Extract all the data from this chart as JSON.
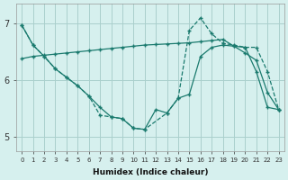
{
  "xlabel": "Humidex (Indice chaleur)",
  "bg_color": "#d6f0ee",
  "grid_color": "#aacfcc",
  "line_color": "#1a7a6e",
  "xlim": [
    -0.5,
    23.5
  ],
  "ylim": [
    4.75,
    7.35
  ],
  "xticks": [
    0,
    1,
    2,
    3,
    4,
    5,
    6,
    7,
    8,
    9,
    10,
    11,
    12,
    13,
    14,
    15,
    16,
    17,
    18,
    19,
    20,
    21,
    22,
    23
  ],
  "yticks": [
    5,
    6,
    7
  ],
  "line1_x": [
    0,
    1,
    2,
    3,
    4,
    5,
    6,
    7,
    8,
    9,
    10,
    11,
    12,
    13,
    14,
    15,
    16,
    17,
    18,
    19,
    20,
    21,
    22,
    23
  ],
  "line1_y": [
    6.97,
    6.62,
    6.42,
    6.2,
    6.05,
    5.9,
    5.72,
    5.52,
    5.35,
    5.32,
    5.15,
    5.13,
    5.48,
    5.42,
    5.68,
    5.75,
    6.42,
    6.58,
    6.62,
    6.6,
    6.58,
    6.15,
    5.52,
    5.48
  ],
  "line2_x": [
    0,
    1,
    2,
    3,
    4,
    5,
    6,
    7,
    8,
    9,
    10,
    11,
    12,
    13,
    14,
    15,
    16,
    17,
    18,
    19,
    20,
    21,
    22,
    23
  ],
  "line2_y": [
    6.38,
    6.42,
    6.44,
    6.46,
    6.48,
    6.5,
    6.52,
    6.54,
    6.56,
    6.58,
    6.6,
    6.62,
    6.63,
    6.64,
    6.65,
    6.66,
    6.68,
    6.7,
    6.72,
    6.6,
    6.48,
    6.35,
    5.78,
    5.48
  ],
  "line3_x": [
    0,
    1,
    2,
    3,
    4,
    5,
    6,
    7,
    8,
    9,
    10,
    11,
    13,
    14,
    15,
    16,
    17,
    18,
    19,
    20,
    21,
    22,
    23
  ],
  "line3_y": [
    6.97,
    6.62,
    6.42,
    6.2,
    6.05,
    5.9,
    5.72,
    5.38,
    5.35,
    5.32,
    5.15,
    5.13,
    5.42,
    5.68,
    6.88,
    7.1,
    6.82,
    6.65,
    6.62,
    6.58,
    6.58,
    6.15,
    5.48
  ]
}
